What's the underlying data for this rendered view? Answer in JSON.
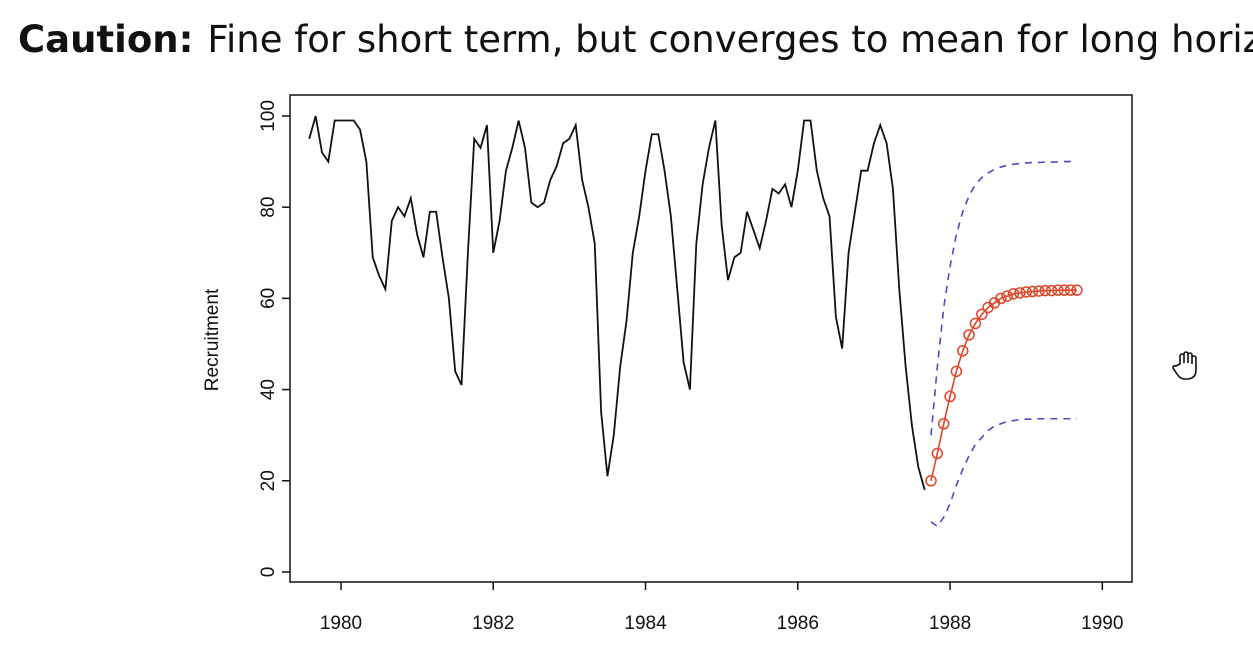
{
  "slide": {
    "caution": "Caution:",
    "message": "Fine for short term, but converges to mean for long horizons"
  },
  "chart_data": {
    "type": "line",
    "ylabel": "Recruitment",
    "xlim": [
      1979.33,
      1990.39
    ],
    "ylim": [
      -2.2,
      104.6
    ],
    "xticks": [
      1980,
      1982,
      1984,
      1986,
      1988,
      1990
    ],
    "yticks": [
      0,
      20,
      40,
      60,
      80,
      100
    ],
    "series": [
      {
        "color": "#111111",
        "style": "line",
        "x": [
          1979.583,
          1979.667,
          1979.75,
          1979.833,
          1979.917,
          1980,
          1980.083,
          1980.167,
          1980.25,
          1980.333,
          1980.417,
          1980.5,
          1980.583,
          1980.667,
          1980.75,
          1980.833,
          1980.917,
          1981,
          1981.083,
          1981.167,
          1981.25,
          1981.333,
          1981.417,
          1981.5,
          1981.583,
          1981.667,
          1981.75,
          1981.833,
          1981.917,
          1982,
          1982.083,
          1982.167,
          1982.25,
          1982.333,
          1982.417,
          1982.5,
          1982.583,
          1982.667,
          1982.75,
          1982.833,
          1982.917,
          1983,
          1983.083,
          1983.167,
          1983.25,
          1983.333,
          1983.417,
          1983.5,
          1983.583,
          1983.667,
          1983.75,
          1983.833,
          1983.917,
          1984,
          1984.083,
          1984.167,
          1984.25,
          1984.333,
          1984.417,
          1984.5,
          1984.583,
          1984.667,
          1984.75,
          1984.833,
          1984.917,
          1985,
          1985.083,
          1985.167,
          1985.25,
          1985.333,
          1985.417,
          1985.5,
          1985.583,
          1985.667,
          1985.75,
          1985.833,
          1985.917,
          1986,
          1986.083,
          1986.167,
          1986.25,
          1986.333,
          1986.417,
          1986.5,
          1986.583,
          1986.667,
          1986.75,
          1986.833,
          1986.917,
          1987,
          1987.083,
          1987.167,
          1987.25,
          1987.333,
          1987.417,
          1987.5,
          1987.583,
          1987.667
        ],
        "values": [
          95,
          100,
          92,
          90,
          99,
          99,
          99,
          99,
          97,
          90,
          69,
          65,
          62,
          77,
          80,
          78,
          82,
          74,
          69,
          79,
          79,
          69,
          60,
          44,
          41,
          70,
          95,
          93,
          98,
          70,
          77,
          88,
          93,
          99,
          93,
          81,
          80,
          81,
          86,
          89,
          94,
          95,
          98,
          86,
          80,
          72,
          35,
          21,
          30,
          45,
          55,
          70,
          78,
          88,
          96,
          96,
          88,
          78,
          62,
          46,
          40,
          72,
          85,
          93,
          99,
          76,
          64,
          69,
          70,
          79,
          75,
          71,
          77,
          84,
          83,
          85,
          80,
          88,
          99,
          99,
          88,
          82,
          78,
          56,
          49,
          70,
          79,
          88,
          88,
          94,
          98,
          94,
          84,
          62,
          45,
          32,
          23,
          18
        ]
      },
      {
        "color": "#e0452a",
        "style": "line-points",
        "x": [
          1987.75,
          1987.833,
          1987.917,
          1988,
          1988.083,
          1988.167,
          1988.25,
          1988.333,
          1988.417,
          1988.5,
          1988.583,
          1988.667,
          1988.75,
          1988.833,
          1988.917,
          1989,
          1989.083,
          1989.167,
          1989.25,
          1989.333,
          1989.417,
          1989.5,
          1989.583,
          1989.667
        ],
        "values": [
          20,
          26,
          32.5,
          38.5,
          44,
          48.5,
          52,
          54.5,
          56.5,
          58,
          59,
          60,
          60.5,
          61,
          61.2,
          61.4,
          61.5,
          61.6,
          61.7,
          61.7,
          61.8,
          61.8,
          61.8,
          61.8
        ]
      },
      {
        "color": "#4b4bc8",
        "style": "dashed",
        "x": [
          1987.75,
          1987.833,
          1987.917,
          1988,
          1988.083,
          1988.167,
          1988.25,
          1988.333,
          1988.417,
          1988.5,
          1988.583,
          1988.667,
          1988.75,
          1988.833,
          1988.917,
          1989,
          1989.083,
          1989.167,
          1989.25,
          1989.333,
          1989.417,
          1989.5,
          1989.583,
          1989.667
        ],
        "values": [
          30,
          45,
          58,
          67,
          74,
          79,
          82.5,
          85,
          86.5,
          87.5,
          88.3,
          88.8,
          89.2,
          89.4,
          89.6,
          89.7,
          89.8,
          89.8,
          89.9,
          89.9,
          89.9,
          90,
          90,
          90
        ]
      },
      {
        "color": "#4b4bc8",
        "style": "dashed",
        "x": [
          1987.75,
          1987.833,
          1987.917,
          1988,
          1988.083,
          1988.167,
          1988.25,
          1988.333,
          1988.417,
          1988.5,
          1988.583,
          1988.667,
          1988.75,
          1988.833,
          1988.917,
          1989,
          1989.083,
          1989.167,
          1989.25,
          1989.333,
          1989.417,
          1989.5,
          1989.583,
          1989.667
        ],
        "values": [
          11,
          10,
          12,
          15,
          19,
          22.5,
          25.5,
          28,
          29.5,
          31,
          32,
          32.5,
          33,
          33.2,
          33.4,
          33.5,
          33.5,
          33.6,
          33.6,
          33.6,
          33.6,
          33.6,
          33.6,
          33.6
        ]
      }
    ]
  }
}
